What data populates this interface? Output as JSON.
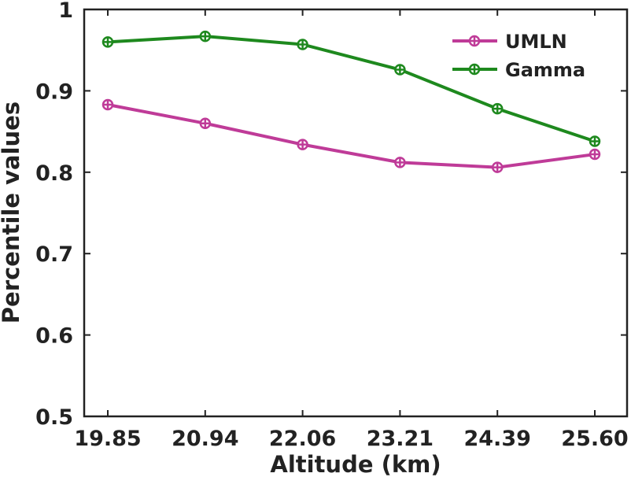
{
  "chart_data": {
    "type": "line",
    "xlabel": "Altitude (km)",
    "ylabel": "Percentile values",
    "categories": [
      "19.85",
      "20.94",
      "22.06",
      "23.21",
      "24.39",
      "25.60"
    ],
    "series": [
      {
        "name": "UMLN",
        "color": "#bf3b98",
        "values": [
          0.883,
          0.86,
          0.834,
          0.812,
          0.806,
          0.822
        ]
      },
      {
        "name": "Gamma",
        "color": "#1e891e",
        "values": [
          0.96,
          0.967,
          0.957,
          0.926,
          0.878,
          0.838
        ]
      }
    ],
    "ylim": [
      0.5,
      1
    ],
    "yticks": [
      0.5,
      0.6,
      0.7,
      0.8,
      0.9,
      1
    ],
    "legend": "upper right"
  }
}
